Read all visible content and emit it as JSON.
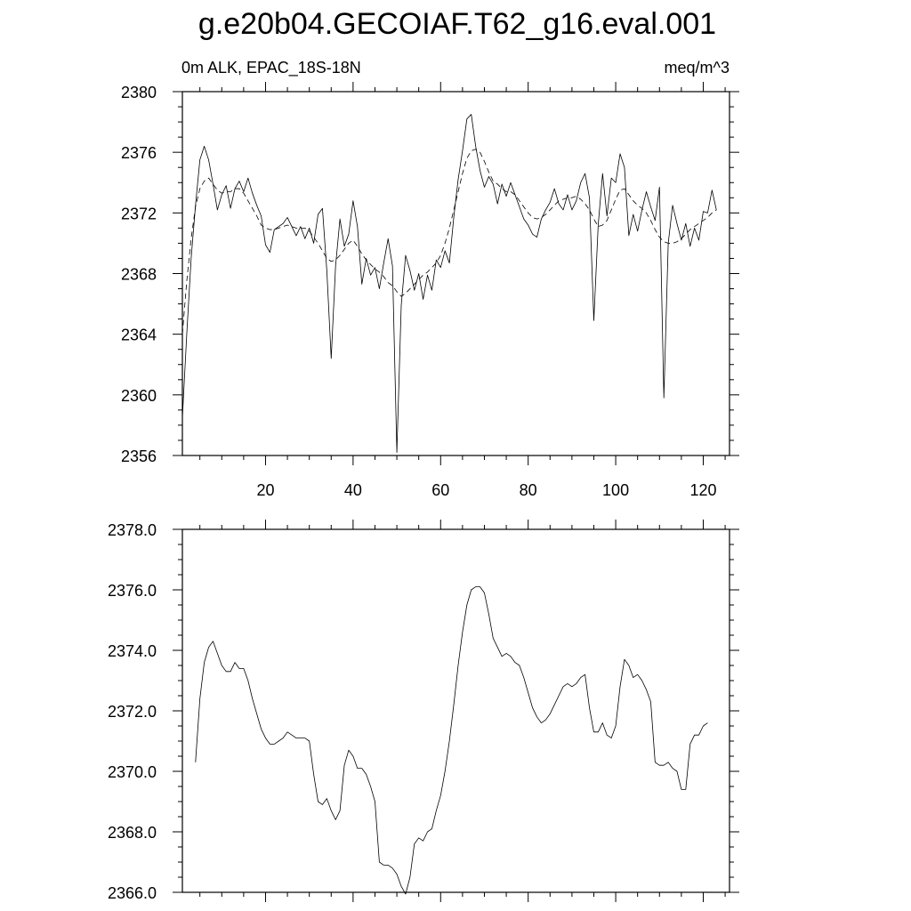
{
  "title": "g.e20b04.GECOIAF.T62_g16.eval.001",
  "chart_data": [
    {
      "type": "line",
      "left_label": "0m ALK, EPAC_18S-18N",
      "right_label": "meq/m^3",
      "xlim": [
        1,
        126
      ],
      "ylim": [
        2356,
        2380
      ],
      "xticks": [
        20,
        40,
        60,
        80,
        100,
        120
      ],
      "xtick_labels": [
        "20",
        "40",
        "60",
        "80",
        "100",
        "120"
      ],
      "yticks": [
        2356,
        2360,
        2364,
        2368,
        2372,
        2376,
        2380
      ],
      "ytick_labels": [
        "2356",
        "2360",
        "2364",
        "2368",
        "2372",
        "2376",
        "2380"
      ],
      "x_start": 1,
      "series": [
        {
          "style": "solid",
          "values": [
            2358.5,
            2364.0,
            2369.0,
            2372.5,
            2375.5,
            2376.4,
            2375.5,
            2373.9,
            2372.2,
            2373.2,
            2373.8,
            2372.3,
            2373.6,
            2374.1,
            2373.4,
            2374.3,
            2373.3,
            2372.5,
            2371.8,
            2369.9,
            2369.4,
            2370.9,
            2371.1,
            2371.3,
            2371.7,
            2371.1,
            2370.5,
            2371.1,
            2370.3,
            2371.0,
            2370.0,
            2371.9,
            2372.3,
            2368.2,
            2362.4,
            2368.5,
            2371.6,
            2369.8,
            2370.6,
            2372.8,
            2371.1,
            2367.3,
            2369.0,
            2367.9,
            2368.4,
            2367.0,
            2368.7,
            2370.3,
            2368.5,
            2356.2,
            2365.9,
            2369.2,
            2368.2,
            2366.9,
            2368.0,
            2366.3,
            2367.9,
            2366.9,
            2368.9,
            2368.4,
            2369.5,
            2368.7,
            2371.7,
            2374.2,
            2376.1,
            2378.2,
            2378.5,
            2376.4,
            2374.8,
            2373.7,
            2374.4,
            2373.9,
            2372.6,
            2373.9,
            2373.1,
            2374.0,
            2373.2,
            2372.4,
            2371.6,
            2371.2,
            2370.6,
            2370.4,
            2371.6,
            2372.2,
            2372.7,
            2373.6,
            2372.6,
            2372.2,
            2373.2,
            2372.2,
            2372.8,
            2374.0,
            2374.6,
            2373.0,
            2364.9,
            2371.2,
            2374.6,
            2371.8,
            2374.3,
            2374.0,
            2375.9,
            2375.0,
            2370.5,
            2371.9,
            2370.8,
            2372.2,
            2373.4,
            2372.4,
            2371.5,
            2373.7,
            2359.8,
            2370.0,
            2372.5,
            2371.3,
            2370.2,
            2371.3,
            2369.8,
            2371.0,
            2370.2,
            2372.1,
            2372.0,
            2373.5,
            2372.2
          ]
        },
        {
          "style": "dashed",
          "values": [
            2364.0,
            2367.5,
            2370.3,
            2372.4,
            2373.6,
            2374.1,
            2374.3,
            2373.9,
            2373.5,
            2373.3,
            2373.4,
            2373.4,
            2373.6,
            2373.6,
            2373.3,
            2372.8,
            2372.3,
            2371.8,
            2371.2,
            2371.0,
            2370.9,
            2370.9,
            2371.0,
            2371.1,
            2371.2,
            2371.1,
            2371.0,
            2371.0,
            2371.0,
            2370.8,
            2370.4,
            2370.0,
            2369.5,
            2369.0,
            2368.8,
            2368.9,
            2369.2,
            2369.6,
            2370.0,
            2370.2,
            2369.8,
            2369.3,
            2368.9,
            2368.6,
            2368.3,
            2368.1,
            2367.8,
            2367.4,
            2367.2,
            2366.8,
            2366.5,
            2366.7,
            2367.0,
            2367.3,
            2367.6,
            2367.9,
            2368.1,
            2368.4,
            2368.7,
            2369.2,
            2370.0,
            2371.0,
            2372.2,
            2373.4,
            2374.6,
            2375.6,
            2376.1,
            2376.2,
            2376.0,
            2375.4,
            2374.7,
            2374.1,
            2373.9,
            2373.6,
            2373.4,
            2373.4,
            2373.2,
            2372.8,
            2372.4,
            2372.0,
            2371.7,
            2371.6,
            2371.7,
            2371.9,
            2372.2,
            2372.5,
            2372.8,
            2372.9,
            2373.0,
            2373.0,
            2373.1,
            2372.9,
            2372.6,
            2372.2,
            2371.6,
            2371.1,
            2371.2,
            2371.5,
            2372.2,
            2372.9,
            2373.5,
            2373.6,
            2373.2,
            2372.8,
            2372.5,
            2372.3,
            2372.0,
            2371.5,
            2370.9,
            2370.4,
            2370.1,
            2370.0,
            2370.0,
            2370.1,
            2370.3,
            2370.6,
            2370.9,
            2371.1,
            2371.3,
            2371.5,
            2371.7,
            2372.0,
            2372.2
          ]
        }
      ]
    },
    {
      "type": "line",
      "xlim": [
        1,
        126
      ],
      "ylim": [
        2366.0,
        2378.0
      ],
      "xticks": [
        20,
        40,
        60,
        80,
        100,
        120
      ],
      "xtick_labels": [],
      "yticks": [
        2366.0,
        2368.0,
        2370.0,
        2372.0,
        2374.0,
        2376.0,
        2378.0
      ],
      "ytick_labels": [
        "2366.0",
        "2368.0",
        "2370.0",
        "2372.0",
        "2374.0",
        "2376.0",
        "2378.0"
      ],
      "x_start": 4,
      "series": [
        {
          "style": "solid",
          "values": [
            2370.3,
            2372.4,
            2373.6,
            2374.1,
            2374.3,
            2373.9,
            2373.5,
            2373.3,
            2373.3,
            2373.6,
            2373.4,
            2373.4,
            2373.0,
            2372.4,
            2371.9,
            2371.4,
            2371.1,
            2370.9,
            2370.9,
            2371.0,
            2371.1,
            2371.3,
            2371.2,
            2371.1,
            2371.1,
            2371.1,
            2371.0,
            2369.9,
            2369.0,
            2368.9,
            2369.1,
            2368.7,
            2368.4,
            2368.7,
            2370.2,
            2370.7,
            2370.5,
            2370.1,
            2370.1,
            2369.9,
            2369.5,
            2369.0,
            2367.0,
            2366.9,
            2366.9,
            2366.8,
            2366.6,
            2366.2,
            2365.9,
            2366.5,
            2367.6,
            2367.8,
            2367.7,
            2368.0,
            2368.1,
            2368.7,
            2369.2,
            2370.0,
            2371.0,
            2372.2,
            2373.5,
            2374.6,
            2375.5,
            2376.0,
            2376.1,
            2376.1,
            2375.9,
            2375.2,
            2374.4,
            2374.1,
            2373.8,
            2373.9,
            2373.8,
            2373.6,
            2373.5,
            2373.1,
            2372.6,
            2372.1,
            2371.8,
            2371.6,
            2371.7,
            2371.9,
            2372.2,
            2372.5,
            2372.8,
            2372.9,
            2372.8,
            2372.9,
            2373.1,
            2373.2,
            2372.1,
            2371.3,
            2371.3,
            2371.6,
            2371.2,
            2371.1,
            2371.5,
            2372.8,
            2373.7,
            2373.5,
            2373.1,
            2373.2,
            2373.0,
            2372.7,
            2372.3,
            2370.3,
            2370.2,
            2370.2,
            2370.3,
            2370.1,
            2370.0,
            2369.4,
            2369.4,
            2370.9,
            2371.2,
            2371.2,
            2371.5,
            2371.6
          ]
        }
      ]
    }
  ]
}
